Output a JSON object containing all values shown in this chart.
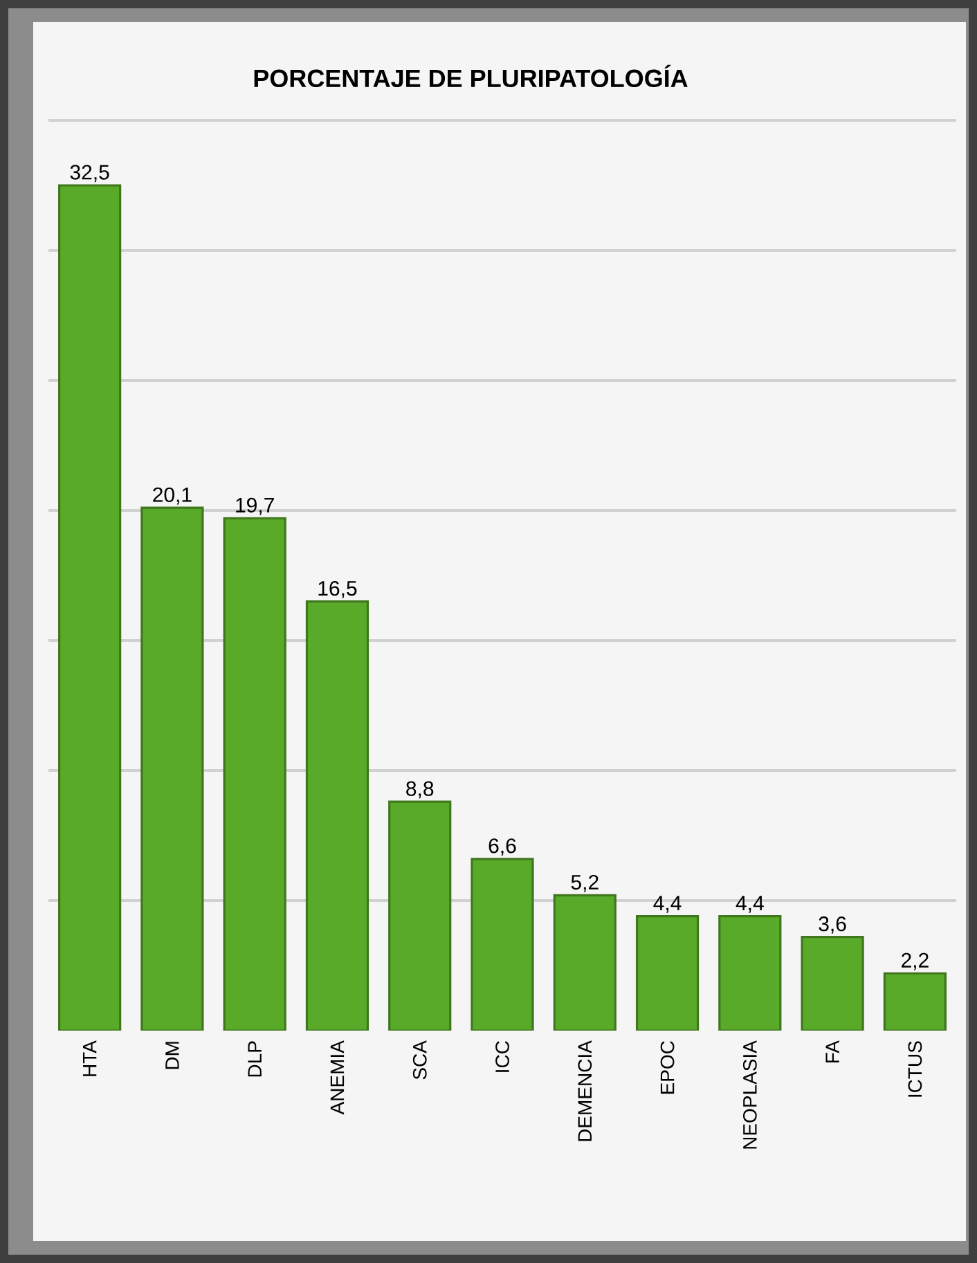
{
  "chart_data": {
    "type": "bar",
    "title": "PORCENTAJE DE PLURIPATOLOGÍA",
    "categories": [
      "HTA",
      "DM",
      "DLP",
      "ANEMIA",
      "SCA",
      "ICC",
      "DEMENCIA",
      "EPOC",
      "NEOPLASIA",
      "FA",
      "ICTUS"
    ],
    "values": [
      32.5,
      20.1,
      19.7,
      16.5,
      8.8,
      6.6,
      5.2,
      4.4,
      4.4,
      3.6,
      2.2
    ],
    "value_labels": [
      "32,5",
      "20,1",
      "19,7",
      "16,5",
      "8,8",
      "6,6",
      "5,2",
      "4,4",
      "4,4",
      "3,6",
      "2,2"
    ],
    "color": "#5aaa2a",
    "ylim": [
      0,
      35
    ],
    "yticks": [
      {
        "value": 5,
        "label": null
      },
      {
        "value": 10,
        "label": null
      },
      {
        "value": 15,
        "label": null
      },
      {
        "value": 20,
        "label": null
      },
      {
        "value": 25,
        "label": null
      },
      {
        "value": 30,
        "label": null
      },
      {
        "value": 35,
        "label": null
      }
    ],
    "grid": "y",
    "tick_labels": "x"
  }
}
